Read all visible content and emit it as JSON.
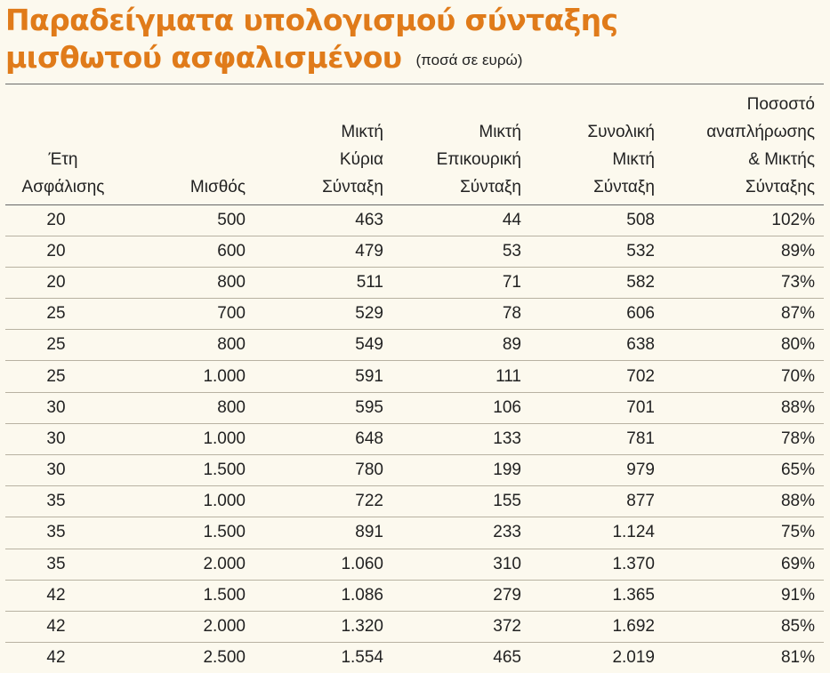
{
  "title": {
    "line1": "Παραδείγματα υπολογισμού σύνταξης",
    "line2": "μισθωτού ασφαλισμένου",
    "note": "(ποσά σε ευρώ)"
  },
  "table": {
    "headers": [
      [
        "Έτη",
        "Ασφάλισης"
      ],
      [
        "Μισθός"
      ],
      [
        "Μικτή",
        "Κύρια",
        "Σύνταξη"
      ],
      [
        "Μικτή",
        "Επικουρική",
        "Σύνταξη"
      ],
      [
        "Συνολική",
        "Μικτή",
        "Σύνταξη"
      ],
      [
        "Ποσοστό",
        "αναπλήρωσης",
        "& Μικτής",
        "Σύνταξης"
      ]
    ],
    "rows": [
      [
        "20",
        "500",
        "463",
        "44",
        "508",
        "102%"
      ],
      [
        "20",
        "600",
        "479",
        "53",
        "532",
        "89%"
      ],
      [
        "20",
        "800",
        "511",
        "71",
        "582",
        "73%"
      ],
      [
        "25",
        "700",
        "529",
        "78",
        "606",
        "87%"
      ],
      [
        "25",
        "800",
        "549",
        "89",
        "638",
        "80%"
      ],
      [
        "25",
        "1.000",
        "591",
        "111",
        "702",
        "70%"
      ],
      [
        "30",
        "800",
        "595",
        "106",
        "701",
        "88%"
      ],
      [
        "30",
        "1.000",
        "648",
        "133",
        "781",
        "78%"
      ],
      [
        "30",
        "1.500",
        "780",
        "199",
        "979",
        "65%"
      ],
      [
        "35",
        "1.000",
        "722",
        "155",
        "877",
        "88%"
      ],
      [
        "35",
        "1.500",
        "891",
        "233",
        "1.124",
        "75%"
      ],
      [
        "35",
        "2.000",
        "1.060",
        "310",
        "1.370",
        "69%"
      ],
      [
        "42",
        "1.500",
        "1.086",
        "279",
        "1.365",
        "91%"
      ],
      [
        "42",
        "2.000",
        "1.320",
        "372",
        "1.692",
        "85%"
      ],
      [
        "42",
        "2.500",
        "1.554",
        "465",
        "2.019",
        "81%"
      ]
    ]
  },
  "colors": {
    "title": "#e07b1a",
    "background": "#fcf9ee",
    "text": "#222222"
  }
}
